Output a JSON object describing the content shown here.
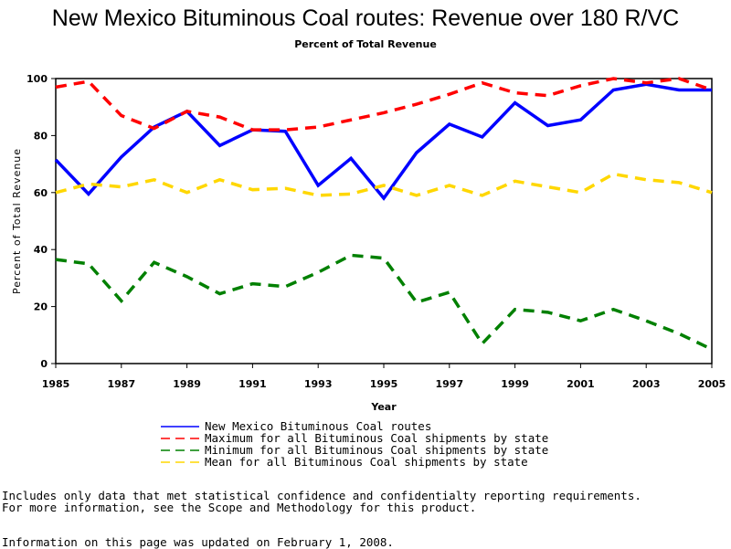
{
  "chart_data": {
    "type": "line",
    "title": "New Mexico Bituminous Coal routes: Revenue over 180 R/VC",
    "subtitle": "Percent of Total Revenue",
    "xlabel": "Year",
    "ylabel": "Percent of Total Revenue",
    "xlim": [
      1985,
      2005
    ],
    "ylim": [
      0,
      100
    ],
    "x": [
      1985,
      1986,
      1987,
      1988,
      1989,
      1990,
      1991,
      1992,
      1993,
      1994,
      1995,
      1996,
      1997,
      1998,
      1999,
      2000,
      2001,
      2002,
      2003,
      2004,
      2005
    ],
    "x_ticks": [
      "1985",
      "1987",
      "1989",
      "1991",
      "1993",
      "1995",
      "1997",
      "1999",
      "2001",
      "2003",
      "2005"
    ],
    "y_ticks": [
      "0",
      "20",
      "40",
      "60",
      "80",
      "100"
    ],
    "series": [
      {
        "name": "New Mexico Bituminous Coal routes",
        "color": "#0000ff",
        "dash": "solid",
        "values": [
          71.5,
          59.5,
          72.5,
          83,
          88.5,
          76.5,
          82,
          81.5,
          62.5,
          72,
          58,
          74,
          84,
          79.5,
          91.5,
          83.5,
          85.5,
          96,
          98,
          96,
          96
        ]
      },
      {
        "name": "Maximum for all Bituminous Coal shipments by state",
        "color": "#ff0000",
        "dash": "dashed",
        "values": [
          97,
          99,
          87,
          82.5,
          88.5,
          86.5,
          82,
          82,
          83,
          85.5,
          88,
          91,
          94.5,
          98.5,
          95,
          94,
          97.5,
          100,
          98.5,
          100,
          96
        ]
      },
      {
        "name": "Minimum for all Bituminous Coal shipments by state",
        "color": "#008000",
        "dash": "dashed",
        "values": [
          36.5,
          35,
          22,
          35.5,
          30.5,
          24.5,
          28,
          27,
          32,
          38,
          37,
          21.5,
          25,
          7,
          19,
          18,
          15,
          19,
          15,
          10.5,
          5
        ]
      },
      {
        "name": "Mean for all Bituminous Coal shipments by state",
        "color": "#ffd700",
        "dash": "dashed",
        "values": [
          60,
          63,
          62,
          64.5,
          60,
          64.5,
          61,
          61.5,
          59,
          59.5,
          62.5,
          59,
          62.5,
          59,
          64,
          62,
          60,
          66.5,
          64.5,
          63.5,
          60
        ]
      }
    ],
    "grid": false,
    "legend_position": "bottom"
  },
  "footer": {
    "note1": "Includes only data that met statistical confidence and confidentialty reporting requirements.",
    "note2": "For more information, see the Scope and Methodology for this product.",
    "updated": "Information on this page was updated on February 1, 2008."
  }
}
